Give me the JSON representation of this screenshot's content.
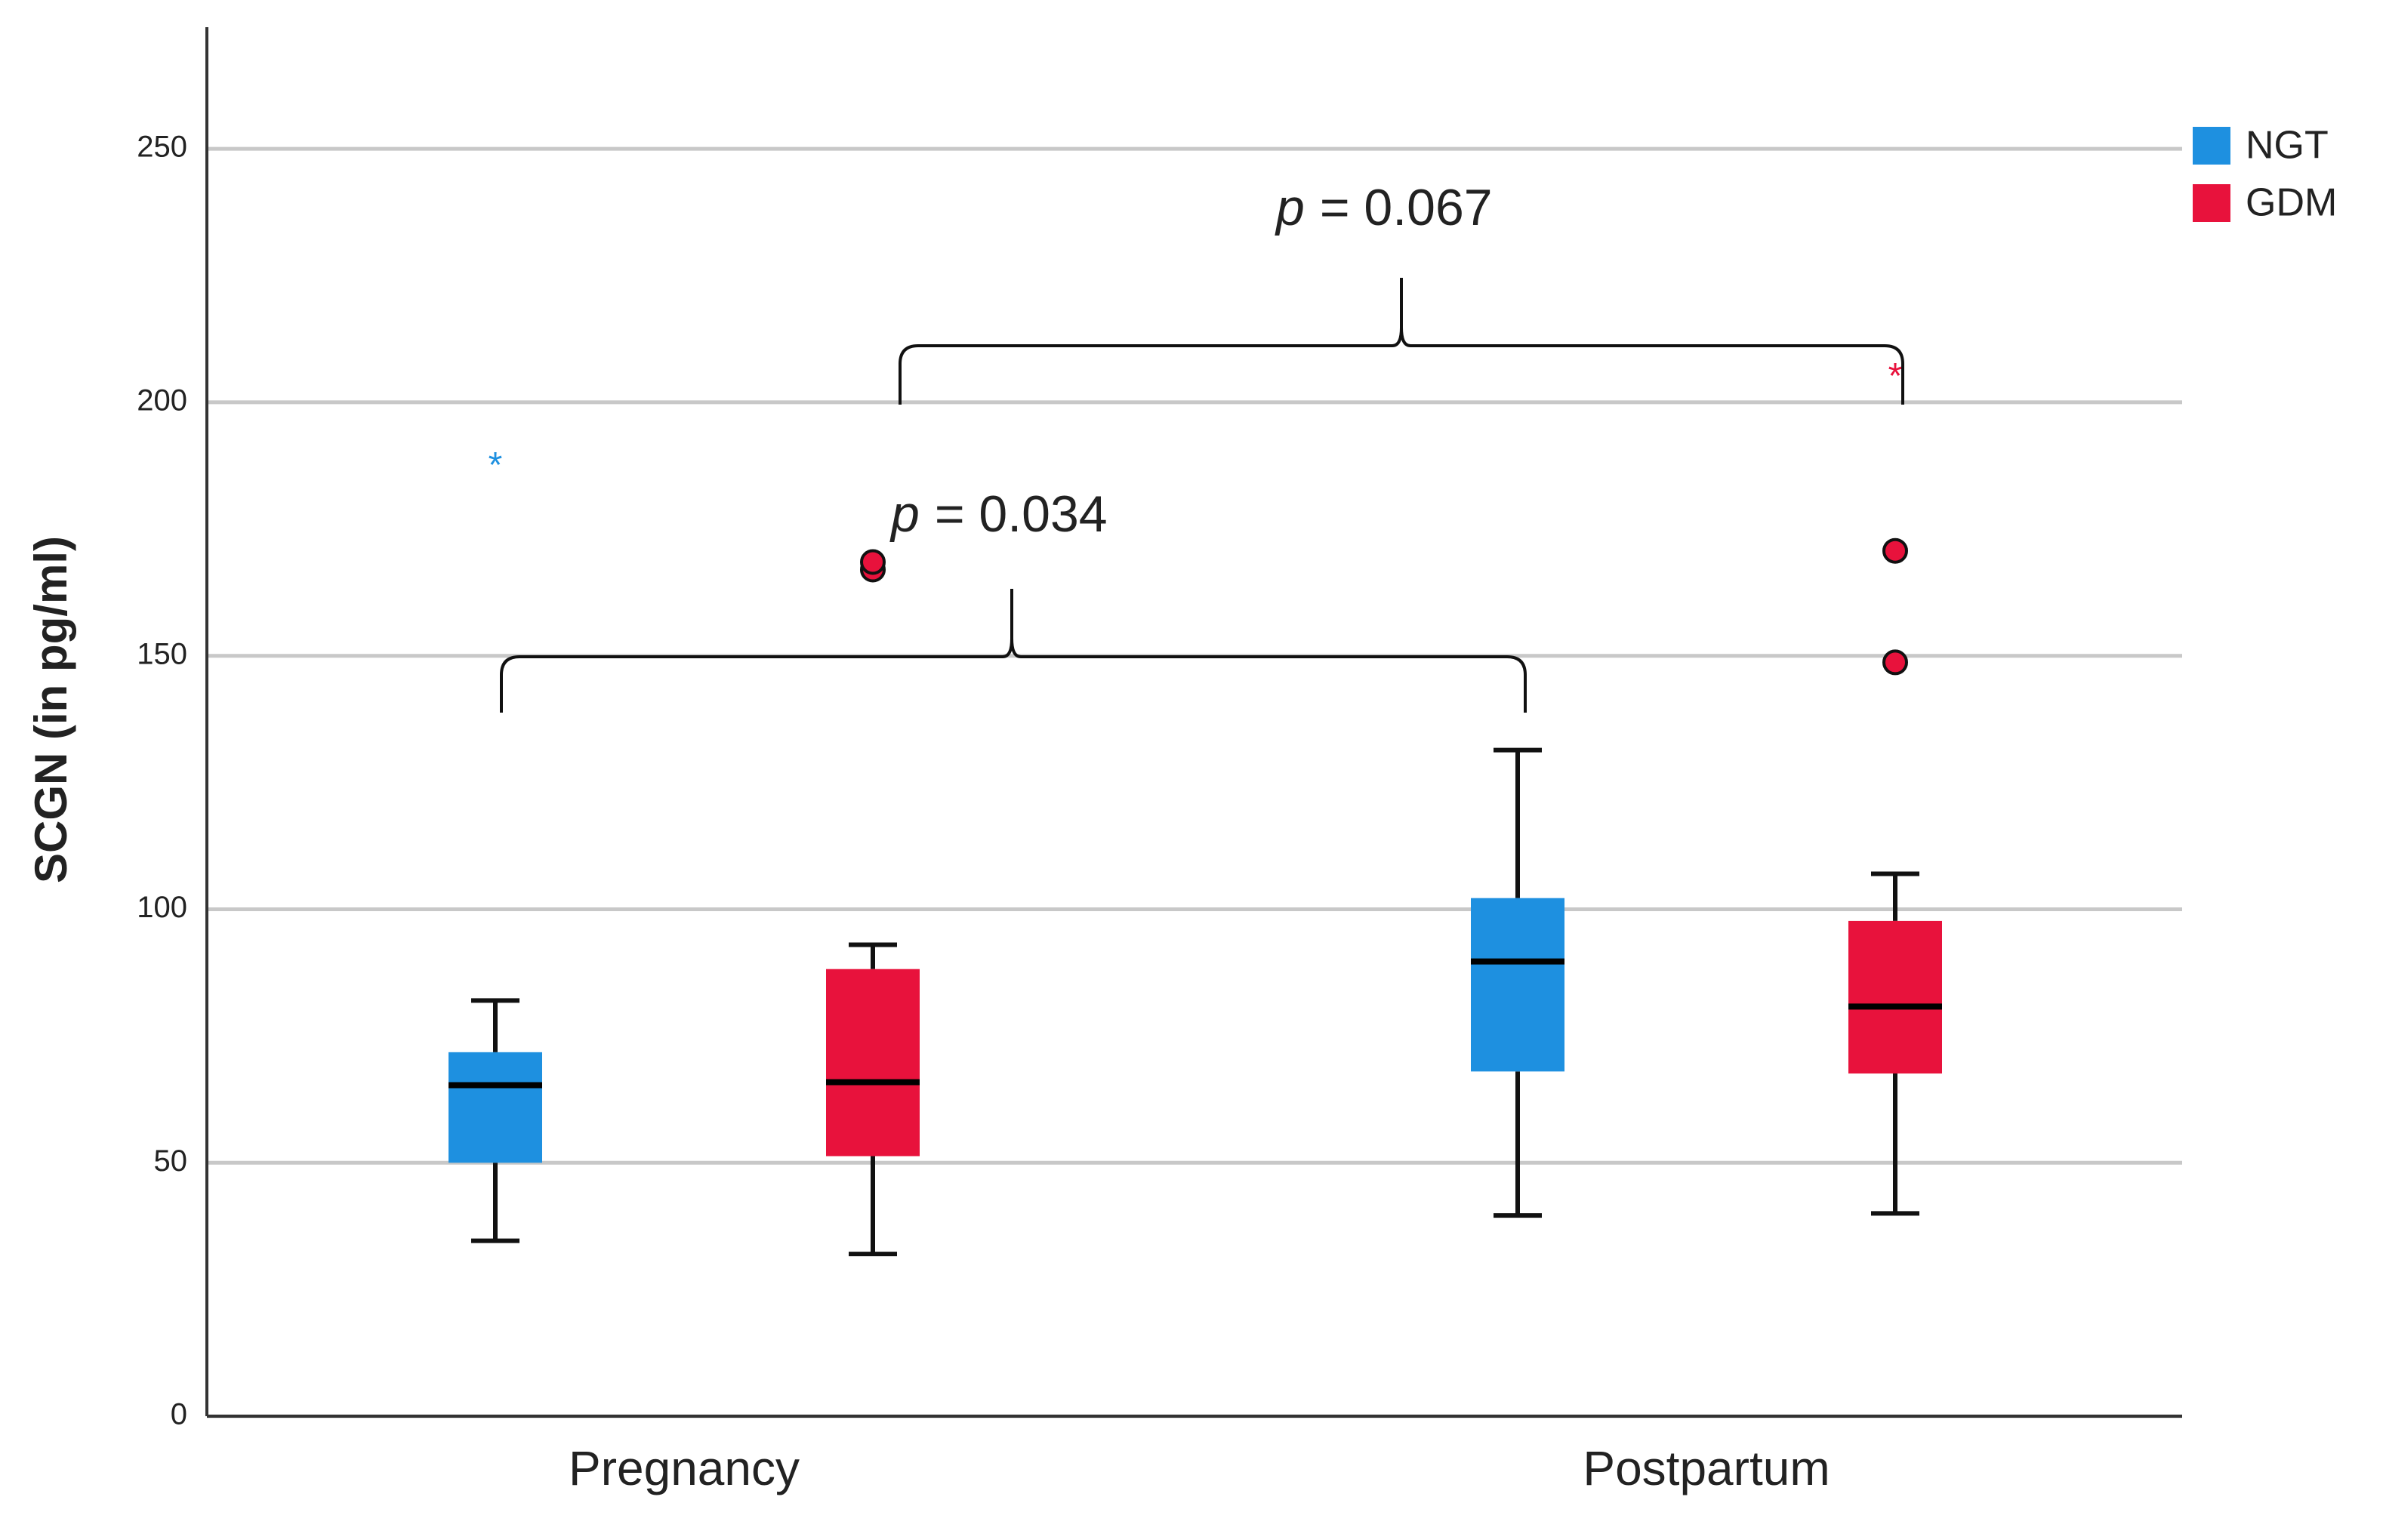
{
  "chart_data": {
    "type": "box",
    "y_label": "SCGN (in pg/ml)",
    "categories": [
      "Pregnancy",
      "Postpartum"
    ],
    "ylim": [
      0,
      274
    ],
    "yticks": [
      0,
      50,
      100,
      150,
      200,
      250
    ],
    "grid": true,
    "legend": "top-right",
    "series": [
      {
        "name": "NGT",
        "color": "#1e90e0",
        "boxes": [
          {
            "whislo": 34.6,
            "q1": 50,
            "med": 65.3,
            "q3": 71.8,
            "whishi": 82,
            "outliers": [],
            "extremes": [
              188
            ]
          },
          {
            "whislo": 39.6,
            "q1": 68,
            "med": 89.7,
            "q3": 102.2,
            "whishi": 131.4,
            "outliers": [],
            "extremes": []
          }
        ]
      },
      {
        "name": "GDM",
        "color": "#e8123c",
        "boxes": [
          {
            "whislo": 32,
            "q1": 51.3,
            "med": 65.9,
            "q3": 88.2,
            "whishi": 93,
            "outliers": [
              167,
              168.5
            ],
            "extremes": []
          },
          {
            "whislo": 40,
            "q1": 67.6,
            "med": 80.8,
            "q3": 97.7,
            "whishi": 107,
            "outliers": [
              148.7,
              170.7
            ],
            "extremes": [
              205.6
            ]
          }
        ]
      }
    ],
    "annotations": [
      {
        "symbol": "p",
        "text": "= 0.034"
      },
      {
        "symbol": "p",
        "text": "= 0.067"
      }
    ]
  }
}
